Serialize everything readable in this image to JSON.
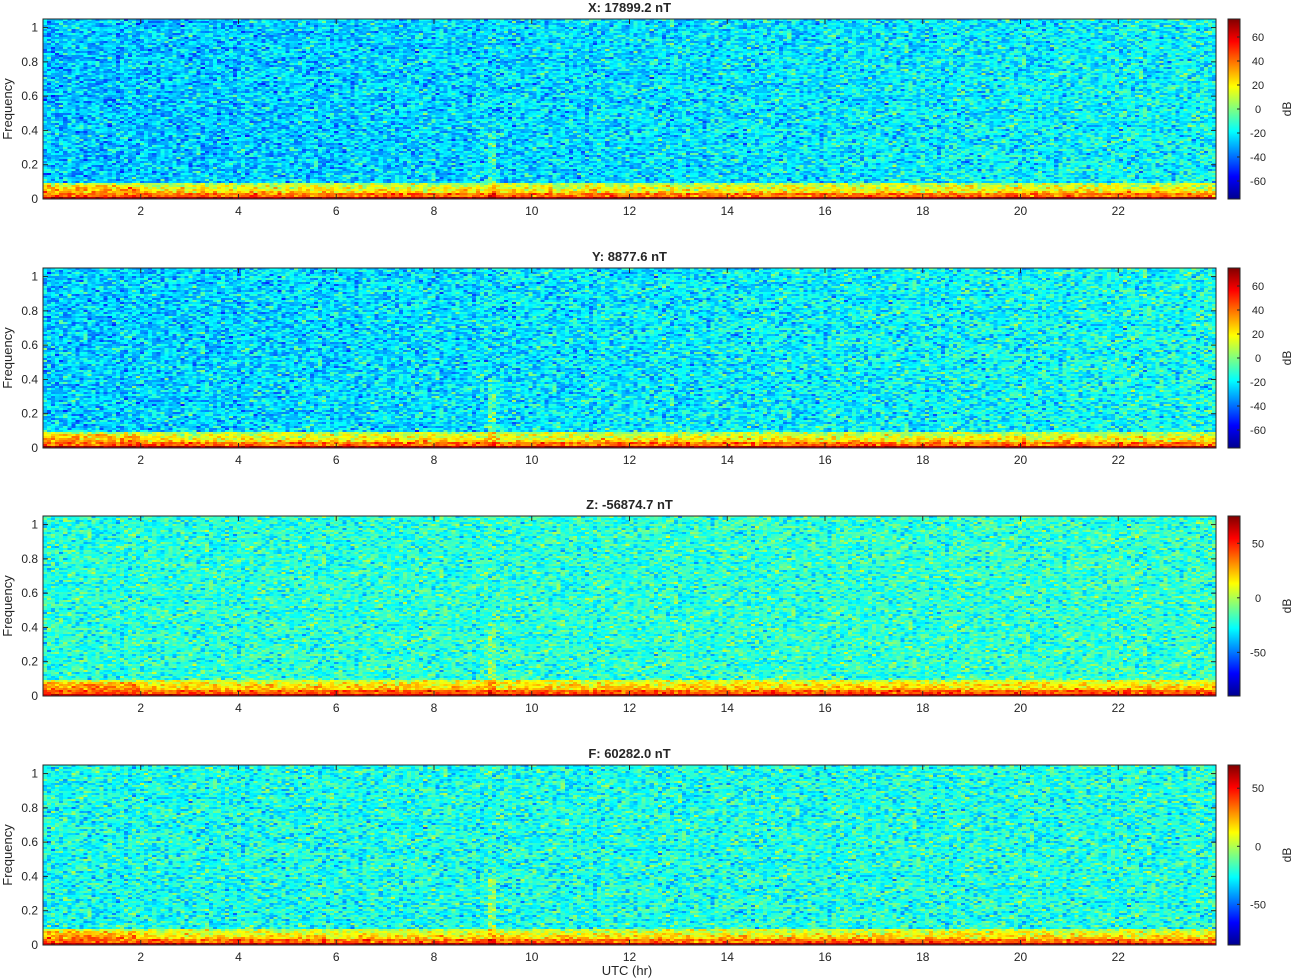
{
  "figure": {
    "xlabel": "UTC (hr)"
  },
  "chart_data": [
    {
      "type": "heatmap",
      "title": "X: 17899.2 nT",
      "xlabel": "",
      "ylabel": "Frequency",
      "colorbar_label": "dB",
      "xlim": [
        0,
        24
      ],
      "ylim": [
        0,
        1.05
      ],
      "xticks": [
        2,
        4,
        6,
        8,
        10,
        12,
        14,
        16,
        18,
        20,
        22
      ],
      "yticks": [
        0,
        0.2,
        0.4,
        0.6,
        0.8,
        1
      ],
      "clim": [
        -75,
        75
      ],
      "cticks": [
        60,
        40,
        20,
        0,
        -20,
        -40,
        -60
      ],
      "base_level": -28,
      "late_level": -18,
      "low_band_level": 25,
      "bottom_level": 70,
      "spike_time": 9.2
    },
    {
      "type": "heatmap",
      "title": "Y: 8877.6 nT",
      "xlabel": "",
      "ylabel": "Frequency",
      "colorbar_label": "dB",
      "xlim": [
        0,
        24
      ],
      "ylim": [
        0,
        1.05
      ],
      "xticks": [
        2,
        4,
        6,
        8,
        10,
        12,
        14,
        16,
        18,
        20,
        22
      ],
      "yticks": [
        0,
        0.2,
        0.4,
        0.6,
        0.8,
        1
      ],
      "clim": [
        -75,
        75
      ],
      "cticks": [
        60,
        40,
        20,
        0,
        -20,
        -40,
        -60
      ],
      "base_level": -26,
      "late_level": -16,
      "low_band_level": 25,
      "bottom_level": 70,
      "spike_time": 9.2
    },
    {
      "type": "heatmap",
      "title": "Z: -56874.7 nT",
      "xlabel": "",
      "ylabel": "Frequency",
      "colorbar_label": "dB",
      "xlim": [
        0,
        24
      ],
      "ylim": [
        0,
        1.05
      ],
      "xticks": [
        2,
        4,
        6,
        8,
        10,
        12,
        14,
        16,
        18,
        20,
        22
      ],
      "yticks": [
        0,
        0.2,
        0.4,
        0.6,
        0.8,
        1
      ],
      "clim": [
        -90,
        75
      ],
      "cticks": [
        50,
        0,
        -50
      ],
      "base_level": -22,
      "late_level": -20,
      "low_band_level": 25,
      "bottom_level": 65,
      "spike_time": 9.2
    },
    {
      "type": "heatmap",
      "title": "F: 60282.0 nT",
      "xlabel": "UTC (hr)",
      "ylabel": "Frequency",
      "colorbar_label": "dB",
      "xlim": [
        0,
        24
      ],
      "ylim": [
        0,
        1.05
      ],
      "xticks": [
        2,
        4,
        6,
        8,
        10,
        12,
        14,
        16,
        18,
        20,
        22
      ],
      "yticks": [
        0,
        0.2,
        0.4,
        0.6,
        0.8,
        1
      ],
      "clim": [
        -85,
        70
      ],
      "cticks": [
        50,
        0,
        -50
      ],
      "base_level": -24,
      "late_level": -22,
      "low_band_level": 20,
      "bottom_level": 62,
      "spike_time": 9.2
    }
  ]
}
